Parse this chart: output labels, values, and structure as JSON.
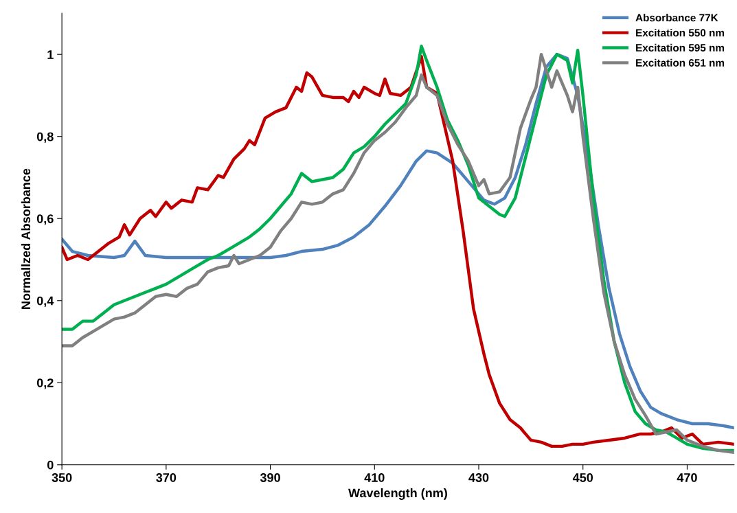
{
  "chart_data": {
    "type": "line",
    "xlabel": "Wavelength (nm)",
    "ylabel": "Normallzed Absorbance",
    "xlim": [
      350,
      479
    ],
    "ylim": [
      0,
      1.1
    ],
    "xticks": [
      350,
      370,
      390,
      410,
      430,
      450,
      470
    ],
    "yticks": [
      0,
      {
        "value": 0.2,
        "label": "0,2"
      },
      {
        "value": 0.4,
        "label": "0,4"
      },
      {
        "value": 0.6,
        "label": "0,6"
      },
      {
        "value": 0.8,
        "label": "0,8"
      },
      1
    ],
    "grid": false,
    "legend": "top right",
    "marker": "none",
    "line_style": "solid",
    "series": [
      {
        "name": "Absorbance 77K",
        "color": "#4f81bd",
        "x": [
          350,
          352,
          355,
          360,
          362,
          364,
          366,
          370,
          380,
          390,
          393,
          396,
          400,
          403,
          406,
          409,
          412,
          415,
          418,
          420,
          422,
          425,
          428,
          431,
          433,
          435,
          437,
          439,
          441,
          443,
          445,
          447,
          449,
          451,
          453,
          455,
          457,
          459,
          461,
          463,
          465,
          468,
          471,
          474,
          477,
          479
        ],
        "values": [
          0.55,
          0.52,
          0.51,
          0.505,
          0.51,
          0.545,
          0.51,
          0.505,
          0.505,
          0.505,
          0.51,
          0.52,
          0.525,
          0.535,
          0.555,
          0.585,
          0.63,
          0.68,
          0.74,
          0.765,
          0.76,
          0.735,
          0.69,
          0.645,
          0.635,
          0.65,
          0.7,
          0.78,
          0.88,
          0.97,
          1.0,
          0.99,
          0.9,
          0.75,
          0.58,
          0.43,
          0.32,
          0.24,
          0.18,
          0.14,
          0.125,
          0.11,
          0.1,
          0.1,
          0.095,
          0.09
        ]
      },
      {
        "name": "Excitation 550 nm",
        "color": "#c00000",
        "x": [
          350,
          351,
          353,
          355,
          357,
          359,
          361,
          362,
          363,
          365,
          367,
          368,
          370,
          371,
          373,
          375,
          376,
          378,
          380,
          381,
          383,
          385,
          386,
          387,
          389,
          391,
          393,
          395,
          396,
          397,
          398,
          400,
          402,
          404,
          405,
          406,
          407,
          408,
          410,
          411,
          412,
          413,
          415,
          417,
          419,
          420,
          422,
          423,
          425,
          427,
          429,
          431,
          432,
          434,
          436,
          438,
          440,
          442,
          444,
          446,
          448,
          450,
          452,
          455,
          458,
          461,
          463,
          465,
          467,
          469,
          471,
          473,
          476,
          479
        ],
        "values": [
          0.53,
          0.5,
          0.51,
          0.5,
          0.52,
          0.54,
          0.555,
          0.585,
          0.56,
          0.6,
          0.62,
          0.605,
          0.64,
          0.625,
          0.645,
          0.64,
          0.675,
          0.67,
          0.705,
          0.7,
          0.745,
          0.77,
          0.79,
          0.78,
          0.845,
          0.86,
          0.87,
          0.92,
          0.91,
          0.955,
          0.945,
          0.9,
          0.895,
          0.895,
          0.885,
          0.91,
          0.895,
          0.92,
          0.905,
          0.9,
          0.94,
          0.905,
          0.9,
          0.92,
          0.995,
          0.92,
          0.905,
          0.85,
          0.74,
          0.57,
          0.38,
          0.27,
          0.22,
          0.15,
          0.11,
          0.09,
          0.06,
          0.055,
          0.045,
          0.045,
          0.05,
          0.05,
          0.055,
          0.06,
          0.065,
          0.075,
          0.075,
          0.08,
          0.09,
          0.065,
          0.075,
          0.05,
          0.055,
          0.05
        ]
      },
      {
        "name": "Excitation 595 nm",
        "color": "#00b050",
        "x": [
          350,
          352,
          354,
          356,
          358,
          360,
          362,
          364,
          366,
          368,
          370,
          372,
          374,
          376,
          378,
          380,
          382,
          384,
          386,
          388,
          390,
          392,
          394,
          396,
          398,
          400,
          402,
          404,
          406,
          408,
          410,
          412,
          414,
          416,
          418,
          419,
          420,
          422,
          424,
          426,
          428,
          430,
          432,
          434,
          435,
          437,
          439,
          441,
          443,
          445,
          447,
          448,
          449,
          450,
          452,
          454,
          456,
          458,
          460,
          462,
          464,
          466,
          468,
          470,
          473,
          476,
          479
        ],
        "values": [
          0.33,
          0.33,
          0.35,
          0.35,
          0.37,
          0.39,
          0.4,
          0.41,
          0.42,
          0.43,
          0.44,
          0.455,
          0.47,
          0.485,
          0.5,
          0.51,
          0.525,
          0.54,
          0.555,
          0.575,
          0.6,
          0.63,
          0.66,
          0.71,
          0.69,
          0.695,
          0.7,
          0.72,
          0.76,
          0.775,
          0.8,
          0.83,
          0.855,
          0.88,
          0.95,
          1.02,
          0.985,
          0.92,
          0.84,
          0.79,
          0.73,
          0.65,
          0.63,
          0.61,
          0.605,
          0.65,
          0.75,
          0.85,
          0.95,
          1.0,
          0.985,
          0.93,
          1.01,
          0.9,
          0.65,
          0.45,
          0.3,
          0.2,
          0.13,
          0.1,
          0.085,
          0.08,
          0.065,
          0.05,
          0.04,
          0.035,
          0.035
        ]
      },
      {
        "name": "Excitation 651 nm",
        "color": "#808080",
        "x": [
          350,
          352,
          354,
          356,
          358,
          360,
          362,
          364,
          366,
          368,
          370,
          372,
          374,
          376,
          378,
          380,
          382,
          383,
          384,
          386,
          388,
          390,
          392,
          394,
          396,
          398,
          400,
          402,
          404,
          406,
          408,
          410,
          412,
          414,
          416,
          418,
          419,
          420,
          422,
          424,
          426,
          428,
          430,
          431,
          432,
          434,
          436,
          438,
          440,
          441,
          442,
          443,
          444,
          445,
          447,
          448,
          449,
          450,
          452,
          454,
          456,
          458,
          460,
          462,
          464,
          466,
          468,
          470,
          473,
          476,
          479
        ],
        "values": [
          0.29,
          0.29,
          0.31,
          0.325,
          0.34,
          0.355,
          0.36,
          0.37,
          0.39,
          0.41,
          0.415,
          0.41,
          0.43,
          0.44,
          0.47,
          0.48,
          0.485,
          0.51,
          0.49,
          0.5,
          0.51,
          0.53,
          0.57,
          0.6,
          0.64,
          0.635,
          0.64,
          0.66,
          0.67,
          0.71,
          0.76,
          0.79,
          0.81,
          0.835,
          0.87,
          0.9,
          0.95,
          0.92,
          0.9,
          0.83,
          0.78,
          0.74,
          0.68,
          0.695,
          0.66,
          0.665,
          0.7,
          0.82,
          0.89,
          0.92,
          1.0,
          0.96,
          0.92,
          0.96,
          0.9,
          0.86,
          0.92,
          0.8,
          0.6,
          0.42,
          0.3,
          0.22,
          0.16,
          0.12,
          0.075,
          0.08,
          0.085,
          0.06,
          0.045,
          0.035,
          0.03
        ]
      }
    ]
  }
}
